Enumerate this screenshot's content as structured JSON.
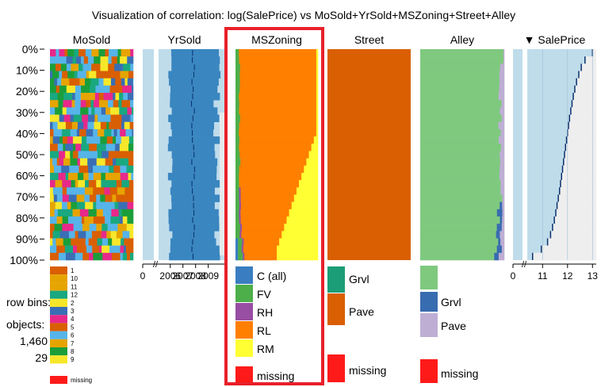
{
  "title": "Visualization of correlation: log(SalePrice) vs MoSold+YrSold+MSZoning+Street+Alley",
  "sort_indicator": "▼",
  "row_labels": [
    "0%",
    "10%",
    "20%",
    "30%",
    "40%",
    "50%",
    "60%",
    "70%",
    "80%",
    "90%",
    "100%"
  ],
  "info": {
    "row_bins_label": "row bins:",
    "objects_label": "objects:",
    "objects_value": "1,460",
    "bins_value": "29"
  },
  "columns": [
    {
      "name": "MoSold",
      "type": "categorical",
      "legend": [
        {
          "label": "1",
          "color": "#D95F02"
        },
        {
          "label": "10",
          "color": "#E6A400"
        },
        {
          "label": "11",
          "color": "#E6A400"
        },
        {
          "label": "12",
          "color": "#19A87F"
        },
        {
          "label": "2",
          "color": "#F7E72A"
        },
        {
          "label": "3",
          "color": "#3A6EB5"
        },
        {
          "label": "4",
          "color": "#E7298A"
        },
        {
          "label": "5",
          "color": "#D95F02"
        },
        {
          "label": "6",
          "color": "#56B4E9"
        },
        {
          "label": "7",
          "color": "#E6A400"
        },
        {
          "label": "8",
          "color": "#1B9E3A"
        },
        {
          "label": "9",
          "color": "#F7E72A"
        },
        {
          "label": "missing",
          "color": "#FF1A1A"
        }
      ]
    },
    {
      "name": "YrSold",
      "type": "numeric",
      "axis_break": "//",
      "ticks": [
        "0",
        "2006",
        "2007",
        "2008",
        "2009"
      ]
    },
    {
      "name": "MSZoning",
      "type": "categorical",
      "highlighted": true,
      "legend": [
        {
          "label": "C (all)",
          "color": "#3A7EC1"
        },
        {
          "label": "FV",
          "color": "#4DAF4A"
        },
        {
          "label": "RH",
          "color": "#984EA3"
        },
        {
          "label": "RL",
          "color": "#FF7F00"
        },
        {
          "label": "RM",
          "color": "#FFFF33"
        },
        {
          "label": "missing",
          "color": "#FF1A1A"
        }
      ]
    },
    {
      "name": "Street",
      "type": "categorical",
      "legend": [
        {
          "label": "Grvl",
          "color": "#1B9E77"
        },
        {
          "label": "Pave",
          "color": "#D95F02"
        },
        {
          "label": "missing",
          "color": "#FF1A1A"
        }
      ]
    },
    {
      "name": "Alley",
      "type": "categorical",
      "legend": [
        {
          "label": "",
          "color": "#7FC97F"
        },
        {
          "label": "Grvl",
          "color": "#386CB0"
        },
        {
          "label": "Pave",
          "color": "#BEAED4"
        },
        {
          "label": "missing",
          "color": "#FF1A1A"
        }
      ]
    },
    {
      "name": "SalePrice",
      "type": "numeric",
      "sorted": true,
      "axis_break": "//",
      "ticks": [
        "0",
        "11",
        "12",
        "13"
      ]
    }
  ],
  "colors": {
    "highlight_border": "#E8202A",
    "numeric_bg": "#BFDCEB",
    "numeric_bar": "#3A86C0",
    "grey_bg": "#EEEEEE",
    "mean_line": "#08306B"
  },
  "chart_data": [
    {
      "type": "table",
      "title": "Visualization of correlation: log(SalePrice) vs MoSold+YrSold+MSZoning+Street+Alley",
      "rows": 29,
      "objects": 1460,
      "sort_by": "SalePrice",
      "series": [
        {
          "name": "SalePrice",
          "unit": "log",
          "values": [
            10.6,
            10.95,
            11.2,
            11.32,
            11.4,
            11.47,
            11.53,
            11.58,
            11.63,
            11.68,
            11.72,
            11.76,
            11.8,
            11.84,
            11.88,
            11.92,
            11.96,
            12.0,
            12.04,
            12.08,
            12.13,
            12.18,
            12.23,
            12.29,
            12.36,
            12.45,
            12.55,
            12.7,
            13.0
          ],
          "ticks": [
            0,
            11,
            12,
            13
          ]
        },
        {
          "name": "YrSold",
          "values": [
            2007.8,
            2007.8,
            2007.8,
            2007.8,
            2007.8,
            2007.8,
            2007.8,
            2007.8,
            2007.8,
            2007.8,
            2007.8,
            2007.8,
            2007.8,
            2007.8,
            2007.8,
            2007.8,
            2007.8,
            2007.8,
            2007.8,
            2007.8,
            2007.8,
            2007.8,
            2007.8,
            2007.8,
            2007.8,
            2007.8,
            2007.8,
            2007.8,
            2007.8
          ],
          "ticks": [
            0,
            2006,
            2007,
            2008,
            2009
          ]
        },
        {
          "name": "MSZoning",
          "categories": [
            "C (all)",
            "FV",
            "RH",
            "RL",
            "RM"
          ],
          "approx_share_top": [
            0,
            0.05,
            0.02,
            0.91,
            0.02
          ],
          "approx_share_bottom": [
            0.03,
            0.02,
            0.02,
            0.45,
            0.48
          ]
        },
        {
          "name": "Street",
          "categories": [
            "Grvl",
            "Pave"
          ],
          "approx_share": [
            0.004,
            0.996
          ]
        },
        {
          "name": "Alley",
          "categories": [
            "",
            "Grvl",
            "Pave"
          ],
          "approx_share_top": [
            0.97,
            0.0,
            0.03
          ],
          "approx_share_bottom": [
            0.9,
            0.07,
            0.03
          ]
        }
      ]
    }
  ]
}
